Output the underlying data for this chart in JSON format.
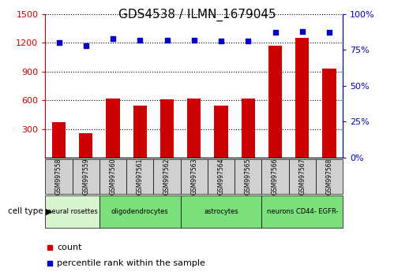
{
  "title": "GDS4538 / ILMN_1679045",
  "samples": [
    "GSM997558",
    "GSM997559",
    "GSM997560",
    "GSM997561",
    "GSM997562",
    "GSM997563",
    "GSM997564",
    "GSM997565",
    "GSM997566",
    "GSM997567",
    "GSM997568"
  ],
  "counts": [
    370,
    258,
    620,
    540,
    610,
    615,
    540,
    615,
    1170,
    1250,
    930
  ],
  "percentiles": [
    80,
    78,
    83,
    82,
    82,
    82,
    81,
    81,
    87,
    88,
    87
  ],
  "ylim_left": [
    0,
    1500
  ],
  "ylim_right": [
    0,
    100
  ],
  "yticks_left": [
    300,
    600,
    900,
    1200,
    1500
  ],
  "yticks_right": [
    0,
    25,
    50,
    75,
    100
  ],
  "cell_groups": [
    {
      "label": "neural rosettes",
      "start": 0,
      "end": 1,
      "color": "#d8f5d0"
    },
    {
      "label": "oligodendrocytes",
      "start": 2,
      "end": 4,
      "color": "#7be07b"
    },
    {
      "label": "astrocytes",
      "start": 5,
      "end": 7,
      "color": "#7be07b"
    },
    {
      "label": "neurons CD44- EGFR-",
      "start": 8,
      "end": 10,
      "color": "#7be07b"
    }
  ],
  "bar_color": "#cc0000",
  "dot_color": "#0000cc",
  "bg_color": "#ffffff",
  "plot_bg": "#ffffff",
  "sample_box_color": "#d0d0d0",
  "left_axis_color": "#cc0000",
  "right_axis_color": "#0000cc",
  "title_fontsize": 11,
  "bar_width": 0.5
}
